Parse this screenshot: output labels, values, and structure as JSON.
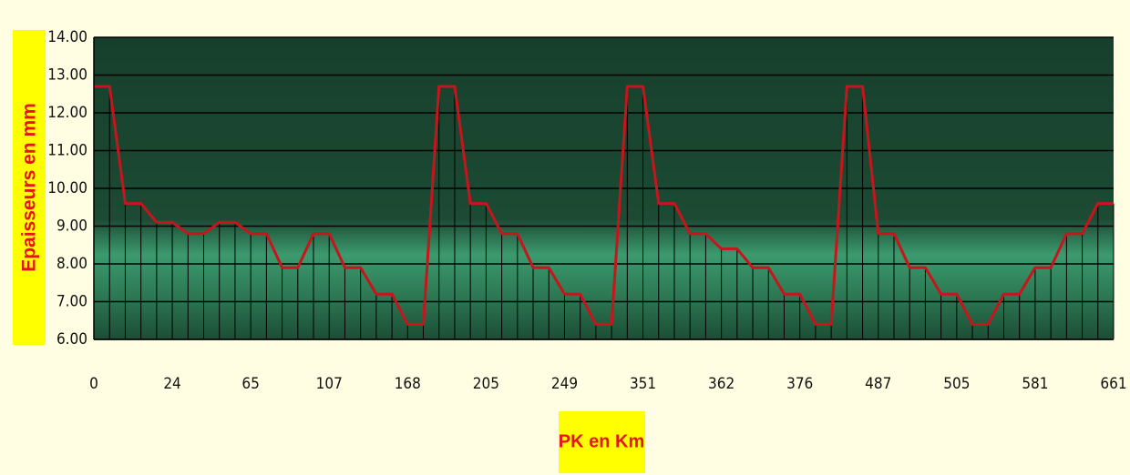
{
  "chart_data": {
    "type": "line",
    "xlabel": "PK en Km",
    "ylabel": "Epaisseurs en mm",
    "categories": [
      "0",
      null,
      null,
      null,
      null,
      "24",
      null,
      null,
      null,
      null,
      "65",
      null,
      null,
      null,
      null,
      "107",
      null,
      null,
      null,
      null,
      "168",
      null,
      null,
      null,
      null,
      "205",
      null,
      null,
      null,
      null,
      "249",
      null,
      null,
      null,
      null,
      "351",
      null,
      null,
      null,
      null,
      "362",
      null,
      null,
      null,
      null,
      "376",
      null,
      null,
      null,
      null,
      "487",
      null,
      null,
      null,
      null,
      "505",
      null,
      null,
      null,
      null,
      "581",
      null,
      null,
      null,
      null,
      "661"
    ],
    "series": [
      {
        "name": "Epaisseurs",
        "color": "#c8141c",
        "values": [
          12.7,
          12.7,
          9.6,
          9.6,
          9.1,
          9.1,
          8.8,
          8.8,
          9.1,
          9.1,
          8.8,
          8.8,
          7.9,
          7.9,
          8.8,
          8.8,
          7.9,
          7.9,
          7.2,
          7.2,
          6.4,
          6.4,
          12.7,
          12.7,
          9.6,
          9.6,
          8.8,
          8.8,
          7.9,
          7.9,
          7.2,
          7.2,
          6.4,
          6.4,
          12.7,
          12.7,
          9.6,
          9.6,
          8.8,
          8.8,
          8.4,
          8.4,
          7.9,
          7.9,
          7.2,
          7.2,
          6.4,
          6.4,
          12.7,
          12.7,
          8.8,
          8.8,
          7.9,
          7.9,
          7.2,
          7.2,
          6.4,
          6.4,
          7.2,
          7.2,
          7.9,
          7.9,
          8.8,
          8.8,
          9.6,
          9.6
        ]
      }
    ],
    "ylim": [
      6,
      14
    ],
    "yticks": [
      {
        "value": 6,
        "label": "6.00"
      },
      {
        "value": 7,
        "label": "7.00"
      },
      {
        "value": 8,
        "label": "8.00"
      },
      {
        "value": 9,
        "label": "9.00"
      },
      {
        "value": 10,
        "label": "10.00"
      },
      {
        "value": 11,
        "label": "11.00"
      },
      {
        "value": 12,
        "label": "12.00"
      },
      {
        "value": 13,
        "label": "13.00"
      },
      {
        "value": 14,
        "label": "14.00"
      }
    ],
    "grid": true,
    "drop_lines": true
  }
}
